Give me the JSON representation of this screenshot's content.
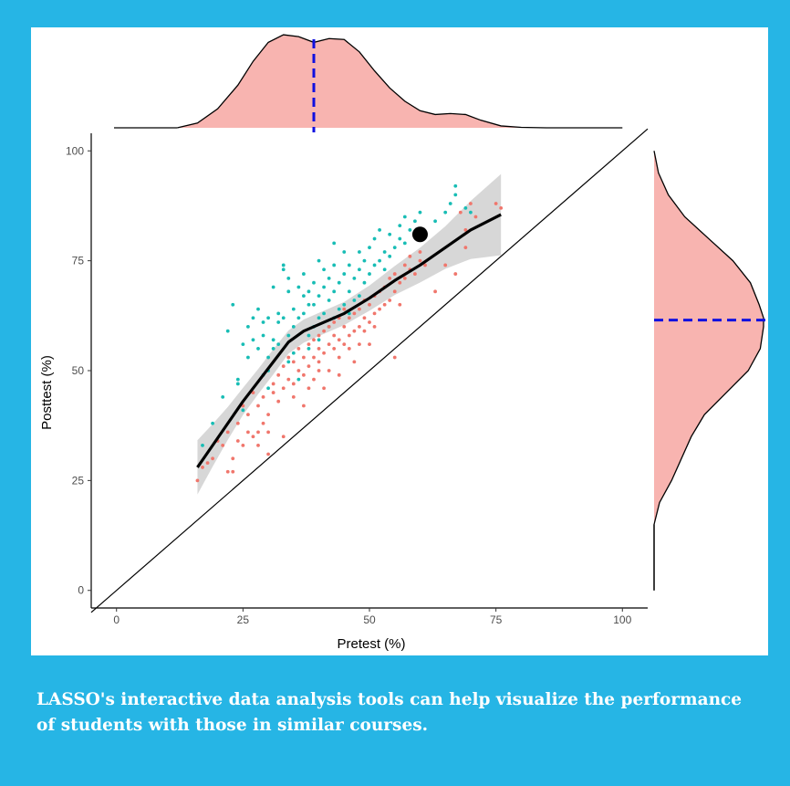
{
  "theme": {
    "frame_color": "#26b5e5",
    "panel_color": "#ffffff",
    "caption_color": "#ffffff"
  },
  "caption": "LASSO's interactive data analysis tools can help visualize the performance of students with those in similar courses.",
  "chart_data": {
    "type": "scatter",
    "xlabel": "Pretest (%)",
    "ylabel": "Posttest (%)",
    "xlim": [
      -5,
      105
    ],
    "ylim": [
      -4,
      104
    ],
    "xticks": [
      "0",
      "25",
      "50",
      "75",
      "100"
    ],
    "yticks": [
      "0",
      "25",
      "50",
      "75",
      "100"
    ],
    "grid": false,
    "colors": {
      "teal": "#18bdb5",
      "salmon": "#f0766c",
      "density_fill": "#f8b4b0",
      "mean_line": "#1010e0"
    },
    "reference_line": {
      "from": [
        0,
        0
      ],
      "to": [
        105,
        105
      ],
      "label": ""
    },
    "smooth_line": {
      "x": [
        16,
        19,
        22,
        25,
        28,
        31,
        34,
        37,
        40,
        45,
        50,
        55,
        60,
        65,
        70,
        76
      ],
      "y": [
        28,
        33,
        38,
        43,
        47.5,
        52,
        56.5,
        59,
        60.5,
        63,
        66.5,
        70.5,
        74,
        78,
        82,
        85.5
      ],
      "band_halfwidth": [
        2.8,
        2.2,
        1.7,
        1.4,
        1.3,
        1.3,
        1.2,
        1.2,
        1.2,
        1.2,
        1.3,
        1.5,
        1.8,
        2.2,
        3.0,
        4.2
      ]
    },
    "highlight_point": {
      "x": 60,
      "y": 81
    },
    "top_density": {
      "x": [
        12,
        16,
        20,
        24,
        27,
        30,
        33,
        36,
        39,
        42,
        45,
        48,
        51,
        54,
        57,
        60,
        63,
        66,
        69,
        72,
        76,
        80,
        85,
        90,
        100
      ],
      "d": [
        0,
        0.05,
        0.2,
        0.45,
        0.7,
        0.9,
        0.98,
        0.96,
        0.9,
        0.94,
        0.93,
        0.8,
        0.6,
        0.42,
        0.28,
        0.18,
        0.14,
        0.15,
        0.14,
        0.08,
        0.02,
        0.005,
        0,
        0,
        0
      ],
      "mean": 39
    },
    "right_density": {
      "y": [
        0,
        15,
        20,
        25,
        30,
        35,
        40,
        45,
        50,
        55,
        60,
        62,
        65,
        70,
        75,
        80,
        85,
        90,
        95,
        100
      ],
      "d": [
        0,
        0,
        0.05,
        0.16,
        0.25,
        0.34,
        0.46,
        0.66,
        0.86,
        0.97,
        1.0,
        1.0,
        0.96,
        0.88,
        0.72,
        0.5,
        0.28,
        0.13,
        0.04,
        0
      ],
      "mean": 61.5
    },
    "series": [
      {
        "color": "#18bdb5",
        "points": [
          [
            17,
            33
          ],
          [
            19,
            38
          ],
          [
            21,
            44
          ],
          [
            22,
            59
          ],
          [
            23,
            65
          ],
          [
            24,
            48
          ],
          [
            24,
            47
          ],
          [
            25,
            41
          ],
          [
            25,
            56
          ],
          [
            26,
            53
          ],
          [
            26,
            60
          ],
          [
            27,
            57
          ],
          [
            27,
            62
          ],
          [
            28,
            55
          ],
          [
            28,
            64
          ],
          [
            29,
            58
          ],
          [
            29,
            61
          ],
          [
            29,
            49
          ],
          [
            30,
            46
          ],
          [
            30,
            50
          ],
          [
            30,
            53
          ],
          [
            30,
            62
          ],
          [
            31,
            57
          ],
          [
            31,
            69
          ],
          [
            31,
            55
          ],
          [
            32,
            56
          ],
          [
            32,
            61
          ],
          [
            32,
            63
          ],
          [
            33,
            62
          ],
          [
            33,
            73
          ],
          [
            33,
            74
          ],
          [
            34,
            58
          ],
          [
            34,
            68
          ],
          [
            34,
            71
          ],
          [
            35,
            54
          ],
          [
            35,
            60
          ],
          [
            35,
            64
          ],
          [
            36,
            62
          ],
          [
            36,
            69
          ],
          [
            37,
            63
          ],
          [
            37,
            67
          ],
          [
            37,
            72
          ],
          [
            38,
            58
          ],
          [
            38,
            65
          ],
          [
            38,
            68
          ],
          [
            39,
            60
          ],
          [
            39,
            65
          ],
          [
            39,
            70
          ],
          [
            40,
            62
          ],
          [
            40,
            67
          ],
          [
            40,
            75
          ],
          [
            41,
            63
          ],
          [
            41,
            69
          ],
          [
            41,
            73
          ],
          [
            42,
            60
          ],
          [
            42,
            66
          ],
          [
            42,
            71
          ],
          [
            43,
            62
          ],
          [
            43,
            68
          ],
          [
            43,
            74
          ],
          [
            43,
            79
          ],
          [
            44,
            64
          ],
          [
            44,
            70
          ],
          [
            45,
            65
          ],
          [
            45,
            72
          ],
          [
            45,
            77
          ],
          [
            46,
            63
          ],
          [
            46,
            68
          ],
          [
            46,
            74
          ],
          [
            47,
            66
          ],
          [
            47,
            71
          ],
          [
            48,
            67
          ],
          [
            48,
            73
          ],
          [
            48,
            77
          ],
          [
            49,
            70
          ],
          [
            49,
            75
          ],
          [
            50,
            72
          ],
          [
            50,
            78
          ],
          [
            51,
            74
          ],
          [
            51,
            80
          ],
          [
            52,
            75
          ],
          [
            52,
            82
          ],
          [
            53,
            73
          ],
          [
            53,
            77
          ],
          [
            54,
            76
          ],
          [
            54,
            81
          ],
          [
            55,
            78
          ],
          [
            56,
            80
          ],
          [
            56,
            83
          ],
          [
            57,
            79
          ],
          [
            57,
            85
          ],
          [
            58,
            82
          ],
          [
            59,
            84
          ],
          [
            60,
            86
          ],
          [
            63,
            84
          ],
          [
            65,
            86
          ],
          [
            66,
            88
          ],
          [
            67,
            92
          ],
          [
            67,
            90
          ],
          [
            69,
            87
          ],
          [
            70,
            86
          ],
          [
            36,
            48
          ],
          [
            34,
            52
          ],
          [
            38,
            55
          ],
          [
            40,
            57
          ]
        ]
      },
      {
        "color": "#f0766c",
        "points": [
          [
            16,
            25
          ],
          [
            17,
            28
          ],
          [
            18,
            29
          ],
          [
            19,
            30
          ],
          [
            20,
            34
          ],
          [
            21,
            33
          ],
          [
            22,
            27
          ],
          [
            22,
            36
          ],
          [
            23,
            30
          ],
          [
            23,
            27
          ],
          [
            24,
            38
          ],
          [
            24,
            34
          ],
          [
            25,
            33
          ],
          [
            25,
            42
          ],
          [
            26,
            40
          ],
          [
            26,
            36
          ],
          [
            27,
            35
          ],
          [
            27,
            45
          ],
          [
            28,
            42
          ],
          [
            28,
            36
          ],
          [
            28,
            33
          ],
          [
            29,
            38
          ],
          [
            29,
            44
          ],
          [
            30,
            40
          ],
          [
            30,
            31
          ],
          [
            31,
            45
          ],
          [
            31,
            47
          ],
          [
            32,
            43
          ],
          [
            32,
            49
          ],
          [
            33,
            46
          ],
          [
            33,
            35
          ],
          [
            33,
            51
          ],
          [
            34,
            48
          ],
          [
            34,
            53
          ],
          [
            35,
            47
          ],
          [
            35,
            52
          ],
          [
            35,
            44
          ],
          [
            36,
            50
          ],
          [
            36,
            55
          ],
          [
            37,
            49
          ],
          [
            37,
            53
          ],
          [
            37,
            42
          ],
          [
            38,
            51
          ],
          [
            38,
            56
          ],
          [
            38,
            46
          ],
          [
            39,
            53
          ],
          [
            39,
            57
          ],
          [
            39,
            48
          ],
          [
            40,
            52
          ],
          [
            40,
            58
          ],
          [
            40,
            55
          ],
          [
            41,
            54
          ],
          [
            41,
            59
          ],
          [
            41,
            46
          ],
          [
            42,
            50
          ],
          [
            42,
            56
          ],
          [
            42,
            60
          ],
          [
            43,
            55
          ],
          [
            43,
            58
          ],
          [
            43,
            61
          ],
          [
            44,
            53
          ],
          [
            44,
            57
          ],
          [
            44,
            62
          ],
          [
            45,
            56
          ],
          [
            45,
            60
          ],
          [
            45,
            64
          ],
          [
            46,
            58
          ],
          [
            46,
            62
          ],
          [
            46,
            55
          ],
          [
            47,
            59
          ],
          [
            47,
            63
          ],
          [
            47,
            52
          ],
          [
            48,
            60
          ],
          [
            48,
            64
          ],
          [
            48,
            56
          ],
          [
            49,
            62
          ],
          [
            49,
            66
          ],
          [
            49,
            59
          ],
          [
            50,
            61
          ],
          [
            50,
            65
          ],
          [
            51,
            63
          ],
          [
            51,
            67
          ],
          [
            51,
            60
          ],
          [
            52,
            64
          ],
          [
            52,
            68
          ],
          [
            53,
            65
          ],
          [
            53,
            69
          ],
          [
            54,
            66
          ],
          [
            54,
            71
          ],
          [
            55,
            68
          ],
          [
            55,
            72
          ],
          [
            56,
            70
          ],
          [
            56,
            65
          ],
          [
            57,
            71
          ],
          [
            57,
            74
          ],
          [
            58,
            73
          ],
          [
            58,
            76
          ],
          [
            59,
            72
          ],
          [
            60,
            75
          ],
          [
            60,
            77
          ],
          [
            61,
            74
          ],
          [
            63,
            68
          ],
          [
            65,
            74
          ],
          [
            67,
            72
          ],
          [
            68,
            86
          ],
          [
            69,
            82
          ],
          [
            69,
            78
          ],
          [
            70,
            88
          ],
          [
            71,
            85
          ],
          [
            75,
            88
          ],
          [
            76,
            87
          ],
          [
            55,
            53
          ],
          [
            50,
            56
          ],
          [
            44,
            49
          ],
          [
            40,
            50
          ],
          [
            30,
            36
          ]
        ]
      }
    ]
  }
}
